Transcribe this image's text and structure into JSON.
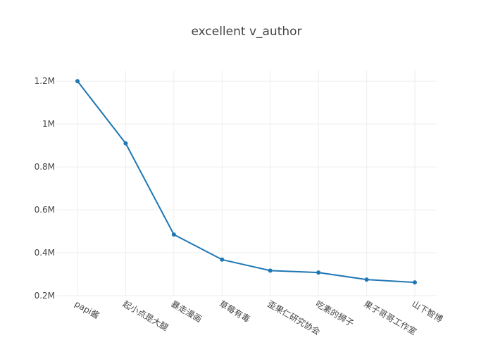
{
  "chart_data": {
    "type": "line",
    "title": "excellent v_author",
    "xlabel": "",
    "ylabel": "",
    "categories": [
      "papi酱",
      "起小点是大腿",
      "暴走漫画",
      "草莓有毒",
      "歪果仁研究协会",
      "吃素的狮子",
      "果子哥哥工作室",
      "山下智博"
    ],
    "series": [
      {
        "values": [
          1200000,
          910000,
          485000,
          368000,
          317000,
          308000,
          275000,
          262000
        ]
      }
    ],
    "ylim": [
      200000,
      1250000
    ],
    "yticks": [
      200000,
      400000,
      600000,
      800000,
      1000000,
      1200000
    ],
    "ytick_labels": [
      "0.2M",
      "0.4M",
      "0.6M",
      "0.8M",
      "1M",
      "1.2M"
    ],
    "grid": true,
    "legend": "none"
  },
  "colors": {
    "series": "#1f77b4",
    "grid": "#eeeeee",
    "text": "#444444"
  }
}
